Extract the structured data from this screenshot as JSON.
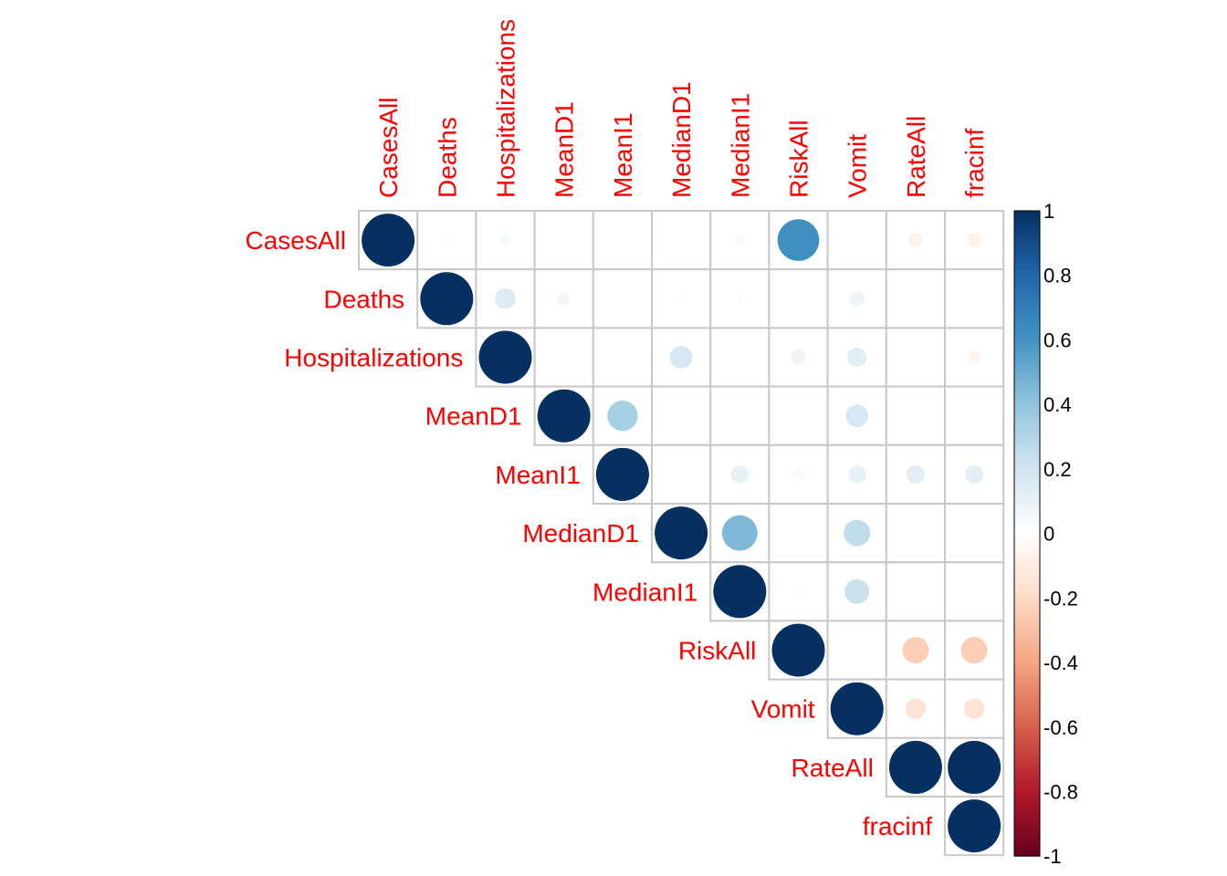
{
  "chart_data": {
    "type": "heatmap",
    "style": "correlation-circles-upper-triangle",
    "variables": [
      "CasesAll",
      "Deaths",
      "Hospitalizations",
      "MeanD1",
      "MeanI1",
      "MedianD1",
      "MedianI1",
      "RiskAll",
      "Vomit",
      "RateAll",
      "fracinf"
    ],
    "matrix": [
      [
        1.0,
        0.02,
        0.04,
        0.0,
        0.0,
        0.01,
        0.04,
        0.62,
        0.0,
        -0.07,
        -0.07
      ],
      [
        0.02,
        1.0,
        0.15,
        0.06,
        0.01,
        -0.02,
        -0.02,
        0.01,
        0.08,
        0.01,
        0.01
      ],
      [
        0.04,
        0.15,
        1.0,
        0.01,
        0.01,
        0.18,
        0.01,
        0.08,
        0.13,
        0.01,
        -0.06
      ],
      [
        0.0,
        0.06,
        0.01,
        1.0,
        0.33,
        0.01,
        0.01,
        0.0,
        0.18,
        0.01,
        0.01
      ],
      [
        0.0,
        0.01,
        0.01,
        0.33,
        1.0,
        0.0,
        0.11,
        -0.04,
        0.11,
        0.12,
        0.12
      ],
      [
        0.01,
        -0.02,
        0.18,
        0.01,
        0.0,
        1.0,
        0.45,
        0.0,
        0.25,
        0.0,
        0.01
      ],
      [
        0.04,
        -0.02,
        0.01,
        0.01,
        0.11,
        0.45,
        1.0,
        0.02,
        0.22,
        0.01,
        0.0
      ],
      [
        0.62,
        0.01,
        0.08,
        0.0,
        -0.04,
        0.0,
        0.02,
        1.0,
        0.01,
        -0.25,
        -0.25
      ],
      [
        0.0,
        0.08,
        0.13,
        0.18,
        0.11,
        0.25,
        0.22,
        0.01,
        1.0,
        -0.15,
        -0.15
      ],
      [
        -0.07,
        0.01,
        0.01,
        0.01,
        0.12,
        0.0,
        0.01,
        -0.25,
        -0.15,
        1.0,
        1.0
      ],
      [
        -0.07,
        0.01,
        -0.06,
        0.01,
        0.12,
        0.01,
        0.0,
        -0.25,
        -0.15,
        1.0,
        1.0
      ]
    ],
    "colorbar": {
      "range": [
        -1,
        1
      ],
      "ticks": [
        "1",
        "0.8",
        "0.6",
        "0.4",
        "0.2",
        "0",
        "-0.2",
        "-0.4",
        "-0.6",
        "-0.8",
        "-1"
      ],
      "colors": {
        "-1": "#67001f",
        "-0.8": "#b2182b",
        "-0.6": "#d6604d",
        "-0.4": "#f4a582",
        "-0.2": "#fddbc7",
        "0": "#ffffff",
        "0.2": "#d1e5f0",
        "0.4": "#92c5de",
        "0.6": "#4393c3",
        "0.8": "#2166ac",
        "1": "#053061"
      }
    },
    "label_color": "#ff0000",
    "grid_color": "#c8c8c8"
  }
}
